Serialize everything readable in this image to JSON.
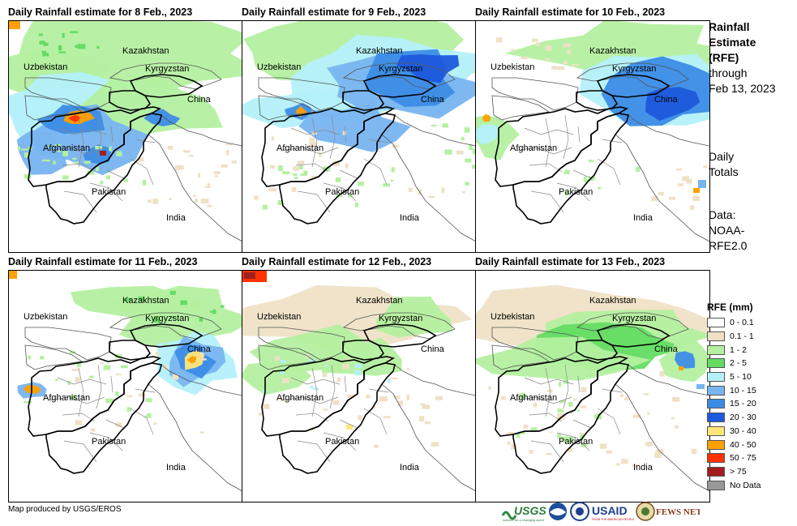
{
  "panels": [
    {
      "title": "Daily Rainfall estimate for 8 Feb., 2023"
    },
    {
      "title": "Daily Rainfall estimate for 9 Feb., 2023"
    },
    {
      "title": "Daily Rainfall estimate for 10 Feb., 2023"
    },
    {
      "title": "Daily Rainfall estimate for 11 Feb., 2023"
    },
    {
      "title": "Daily Rainfall estimate for 12 Feb., 2023"
    },
    {
      "title": "Daily Rainfall estimate for 13 Feb., 2023"
    }
  ],
  "map_labels": {
    "kazakhstan": "Kazakhstan",
    "uzbekistan": "Uzbekistan",
    "kyrgyzstan": "Kyrgyzstan",
    "china": "China",
    "afghanistan": "Afghanistan",
    "pakistan": "Pakistan",
    "india": "India"
  },
  "side": {
    "title_lines": [
      "Rainfall",
      "Estimate",
      "(RFE)"
    ],
    "through_lines": [
      "through",
      "Feb 13, 2023"
    ],
    "daily_lines": [
      "Daily",
      "Totals"
    ],
    "data_lines": [
      "Data:",
      "NOAA-",
      "RFE2.0"
    ]
  },
  "legend": {
    "title": "RFE (mm)",
    "items": [
      {
        "label": "0 - 0.1",
        "color": "#ffffff"
      },
      {
        "label": "0.1 - 1",
        "color": "#efe1c6"
      },
      {
        "label": "1 - 2",
        "color": "#b4f0a0"
      },
      {
        "label": "2 - 5",
        "color": "#64dc64"
      },
      {
        "label": "5 - 10",
        "color": "#b4f0fa"
      },
      {
        "label": "10 - 15",
        "color": "#78b4f0"
      },
      {
        "label": "15 - 20",
        "color": "#3c8ce6"
      },
      {
        "label": "20 - 30",
        "color": "#1e5adc"
      },
      {
        "label": "30 - 40",
        "color": "#ffe678"
      },
      {
        "label": "40 - 50",
        "color": "#ffa000"
      },
      {
        "label": "50 - 75",
        "color": "#ff3200"
      },
      {
        "label": "> 75",
        "color": "#a01e1e"
      },
      {
        "label": "No Data",
        "color": "#999999"
      }
    ]
  },
  "credit": "Map produced by USGS/EROS",
  "logos": {
    "usgs": "USGS",
    "usgs_tagline": "science for a changing world",
    "usaid": "USAID",
    "usaid_tagline": "FROM THE AMERICAN PEOPLE",
    "fewsnet": "FEWS NET"
  }
}
